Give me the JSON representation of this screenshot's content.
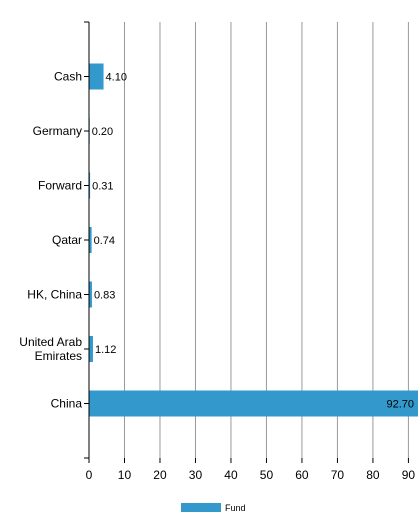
{
  "chart_data": {
    "type": "bar",
    "orientation": "horizontal",
    "categories": [
      "Cash",
      "Germany",
      "Forward",
      "Qatar",
      "HK, China",
      "United Arab Emirates",
      "China"
    ],
    "category_lines": [
      [
        "Cash"
      ],
      [
        "Germany"
      ],
      [
        "Forward"
      ],
      [
        "Qatar"
      ],
      [
        "HK, China"
      ],
      [
        "United Arab",
        "Emirates"
      ],
      [
        "China"
      ]
    ],
    "series": [
      {
        "name": "Fund",
        "values": [
          4.1,
          0.2,
          0.31,
          0.74,
          0.83,
          1.12,
          92.7
        ],
        "labels": [
          "4.10",
          "0.20",
          "0.31",
          "0.74",
          "0.83",
          "1.12",
          "92.70"
        ]
      }
    ],
    "xlim": [
      0,
      92.7
    ],
    "xticks": [
      0,
      10,
      20,
      30,
      40,
      50,
      60,
      70,
      80,
      90
    ],
    "grid": true,
    "legend": {
      "position": "bottom-center",
      "entries": [
        "Fund"
      ]
    },
    "colors": {
      "bar": "#3399cc",
      "grid": "#999999",
      "axis": "#000000"
    }
  }
}
